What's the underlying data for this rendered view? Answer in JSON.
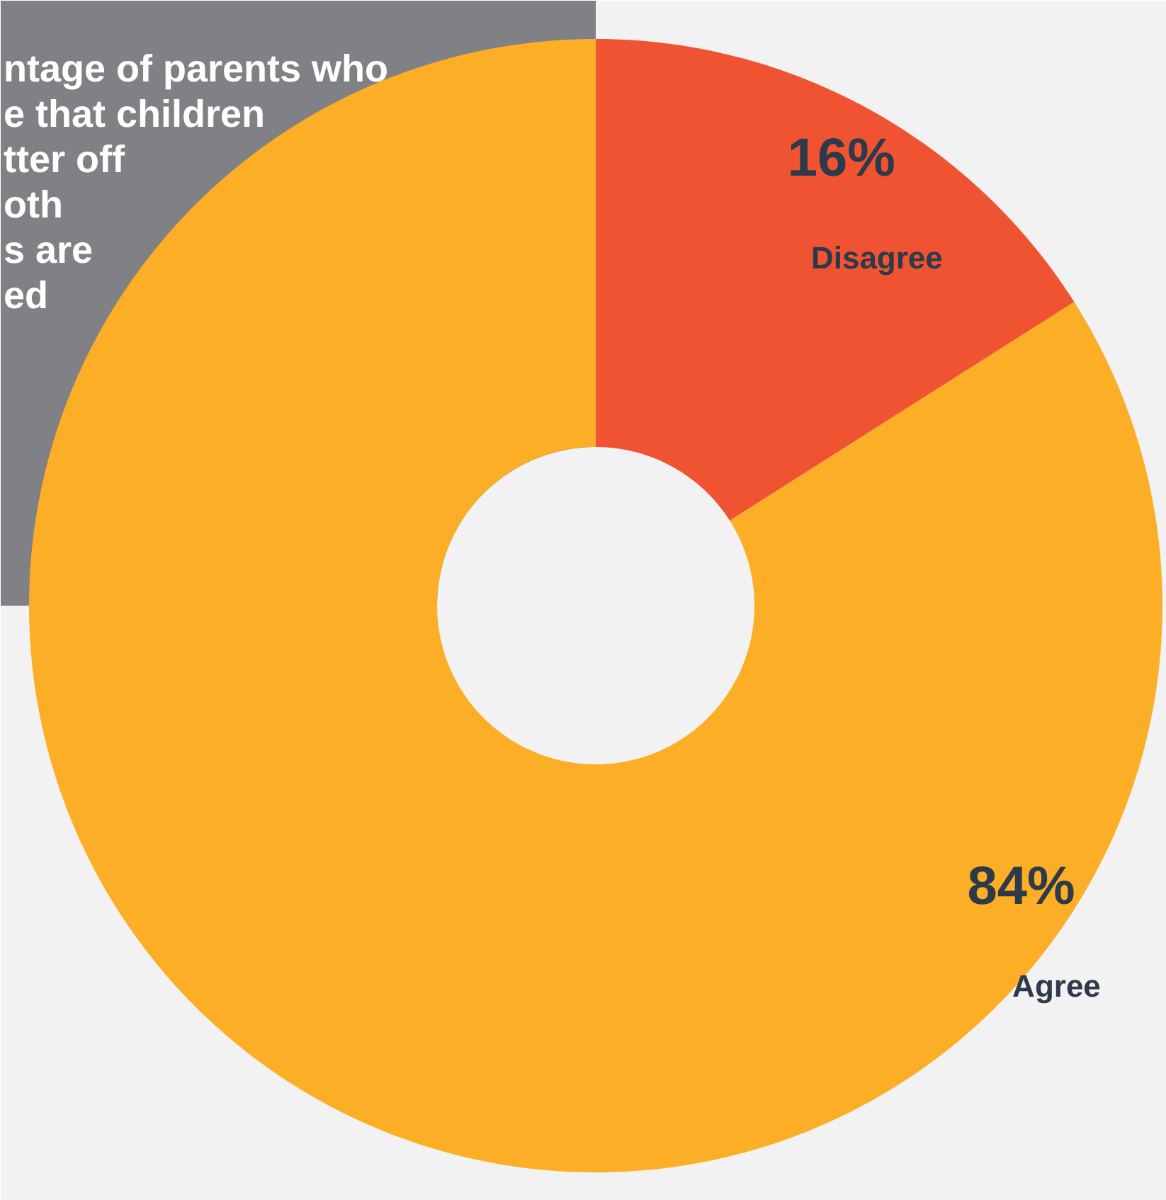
{
  "chart_data": {
    "type": "donut",
    "title": "ntage of parents who\ne that children\ntter off\noth\ns are\ned",
    "categories": [
      "Disagree",
      "Agree"
    ],
    "values": [
      16,
      84
    ],
    "colors": [
      "#f05332",
      "#fbae26"
    ],
    "value_labels": [
      "16%",
      "84%"
    ]
  }
}
